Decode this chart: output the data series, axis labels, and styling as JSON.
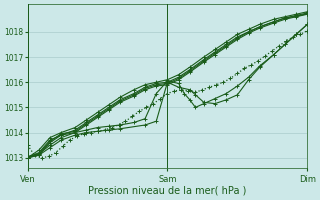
{
  "background_color": "#cce8e8",
  "grid_color": "#aacccc",
  "line_color": "#1a5c1a",
  "xlabel": "Pression niveau de la mer( hPa )",
  "x_ticks_labels": [
    "Ven",
    "Sam",
    "Dim"
  ],
  "x_ticks_pos": [
    0.0,
    0.5,
    1.0
  ],
  "ylim": [
    1012.6,
    1019.1
  ],
  "yticks": [
    1013,
    1014,
    1015,
    1016,
    1017,
    1018
  ],
  "series": [
    {
      "style": "-",
      "lw": 0.8,
      "marker": "+",
      "ms": 2.5,
      "x": [
        0.0,
        0.04,
        0.08,
        0.12,
        0.17,
        0.21,
        0.25,
        0.29,
        0.33,
        0.38,
        0.42,
        0.46,
        0.5,
        0.54,
        0.58,
        0.63,
        0.67,
        0.71,
        0.75,
        0.79,
        0.83,
        0.88,
        0.92,
        0.96,
        1.0
      ],
      "y": [
        1013.0,
        1013.3,
        1013.8,
        1014.0,
        1014.2,
        1014.5,
        1014.8,
        1015.1,
        1015.4,
        1015.7,
        1015.9,
        1016.0,
        1016.1,
        1016.3,
        1016.6,
        1017.0,
        1017.3,
        1017.6,
        1017.9,
        1018.1,
        1018.3,
        1018.5,
        1018.6,
        1018.7,
        1018.8
      ]
    },
    {
      "style": "-",
      "lw": 0.8,
      "marker": "+",
      "ms": 2.5,
      "x": [
        0.0,
        0.04,
        0.08,
        0.12,
        0.17,
        0.21,
        0.25,
        0.29,
        0.33,
        0.38,
        0.42,
        0.46,
        0.5,
        0.54,
        0.58,
        0.63,
        0.67,
        0.71,
        0.75,
        0.79,
        0.83,
        0.88,
        0.92,
        0.96,
        1.0
      ],
      "y": [
        1013.0,
        1013.2,
        1013.7,
        1013.9,
        1014.1,
        1014.4,
        1014.7,
        1015.0,
        1015.3,
        1015.55,
        1015.8,
        1015.95,
        1016.0,
        1016.2,
        1016.5,
        1016.9,
        1017.2,
        1017.5,
        1017.8,
        1018.0,
        1018.2,
        1018.4,
        1018.55,
        1018.65,
        1018.75
      ]
    },
    {
      "style": "-",
      "lw": 0.8,
      "marker": "+",
      "ms": 2.5,
      "x": [
        0.0,
        0.04,
        0.08,
        0.12,
        0.17,
        0.21,
        0.25,
        0.29,
        0.33,
        0.38,
        0.42,
        0.46,
        0.5,
        0.54,
        0.58,
        0.63,
        0.67,
        0.71,
        0.75,
        0.79,
        0.83,
        0.88,
        0.92,
        0.96,
        1.0
      ],
      "y": [
        1013.0,
        1013.1,
        1013.6,
        1013.9,
        1014.0,
        1014.3,
        1014.6,
        1014.9,
        1015.2,
        1015.45,
        1015.7,
        1015.85,
        1015.9,
        1016.1,
        1016.4,
        1016.8,
        1017.1,
        1017.4,
        1017.7,
        1017.95,
        1018.15,
        1018.35,
        1018.5,
        1018.6,
        1018.7
      ]
    },
    {
      "style": "-",
      "lw": 0.8,
      "marker": "+",
      "ms": 2.5,
      "x": [
        0.0,
        0.04,
        0.08,
        0.12,
        0.17,
        0.21,
        0.25,
        0.29,
        0.33,
        0.38,
        0.42,
        0.46,
        0.5,
        0.54,
        0.58,
        0.63,
        0.67,
        0.71,
        0.75,
        0.79,
        0.83,
        0.88,
        0.92,
        0.96,
        1.0
      ],
      "y": [
        1013.05,
        1013.15,
        1013.65,
        1013.95,
        1014.05,
        1014.35,
        1014.65,
        1014.95,
        1015.25,
        1015.5,
        1015.75,
        1015.9,
        1015.95,
        1016.15,
        1016.45,
        1016.85,
        1017.15,
        1017.45,
        1017.75,
        1018.0,
        1018.2,
        1018.4,
        1018.55,
        1018.62,
        1018.72
      ]
    },
    {
      "style": ":",
      "lw": 0.9,
      "marker": "+",
      "ms": 2.5,
      "x": [
        0.0,
        0.025,
        0.05,
        0.075,
        0.1,
        0.125,
        0.15,
        0.175,
        0.2,
        0.225,
        0.25,
        0.275,
        0.3,
        0.325,
        0.35,
        0.375,
        0.4,
        0.425,
        0.45,
        0.475,
        0.5,
        0.525,
        0.55,
        0.575,
        0.6,
        0.625,
        0.65,
        0.675,
        0.7,
        0.725,
        0.75,
        0.775,
        0.8,
        0.825,
        0.85,
        0.875,
        0.9,
        0.925,
        0.95,
        0.975,
        1.0
      ],
      "y": [
        1013.5,
        1013.1,
        1013.0,
        1013.05,
        1013.2,
        1013.45,
        1013.7,
        1013.85,
        1013.95,
        1014.0,
        1014.05,
        1014.1,
        1014.2,
        1014.3,
        1014.45,
        1014.65,
        1014.85,
        1015.0,
        1015.15,
        1015.35,
        1015.55,
        1015.65,
        1015.7,
        1015.65,
        1015.6,
        1015.7,
        1015.8,
        1015.9,
        1016.0,
        1016.15,
        1016.35,
        1016.55,
        1016.7,
        1016.85,
        1017.05,
        1017.25,
        1017.45,
        1017.65,
        1017.8,
        1017.9,
        1018.05
      ]
    },
    {
      "style": "-",
      "lw": 0.8,
      "marker": "+",
      "ms": 2.5,
      "x": [
        0.0,
        0.04,
        0.08,
        0.12,
        0.17,
        0.21,
        0.25,
        0.29,
        0.33,
        0.42,
        0.46,
        0.5,
        0.54,
        0.58,
        0.6,
        0.63,
        0.67,
        0.71,
        0.75,
        0.79,
        0.83,
        0.88,
        0.92,
        0.96,
        1.0
      ],
      "y": [
        1013.0,
        1013.1,
        1013.4,
        1013.7,
        1013.9,
        1014.0,
        1014.05,
        1014.1,
        1014.15,
        1014.3,
        1014.45,
        1016.0,
        1015.8,
        1015.7,
        1015.5,
        1015.2,
        1015.15,
        1015.3,
        1015.5,
        1016.1,
        1016.6,
        1017.1,
        1017.5,
        1017.9,
        1018.3
      ]
    },
    {
      "style": "-",
      "lw": 0.8,
      "marker": "+",
      "ms": 2.5,
      "x": [
        0.0,
        0.04,
        0.08,
        0.12,
        0.17,
        0.21,
        0.25,
        0.29,
        0.33,
        0.38,
        0.42,
        0.46,
        0.5,
        0.54,
        0.56,
        0.58,
        0.6,
        0.63,
        0.67,
        0.71,
        0.75,
        0.79,
        0.83,
        0.88,
        0.92,
        0.96,
        1.0
      ],
      "y": [
        1013.0,
        1013.15,
        1013.5,
        1013.8,
        1014.0,
        1014.1,
        1014.2,
        1014.25,
        1014.3,
        1014.4,
        1014.55,
        1015.55,
        1016.05,
        1015.95,
        1015.55,
        1015.3,
        1015.0,
        1015.15,
        1015.35,
        1015.55,
        1015.85,
        1016.2,
        1016.65,
        1017.1,
        1017.5,
        1017.9,
        1018.3
      ]
    }
  ]
}
